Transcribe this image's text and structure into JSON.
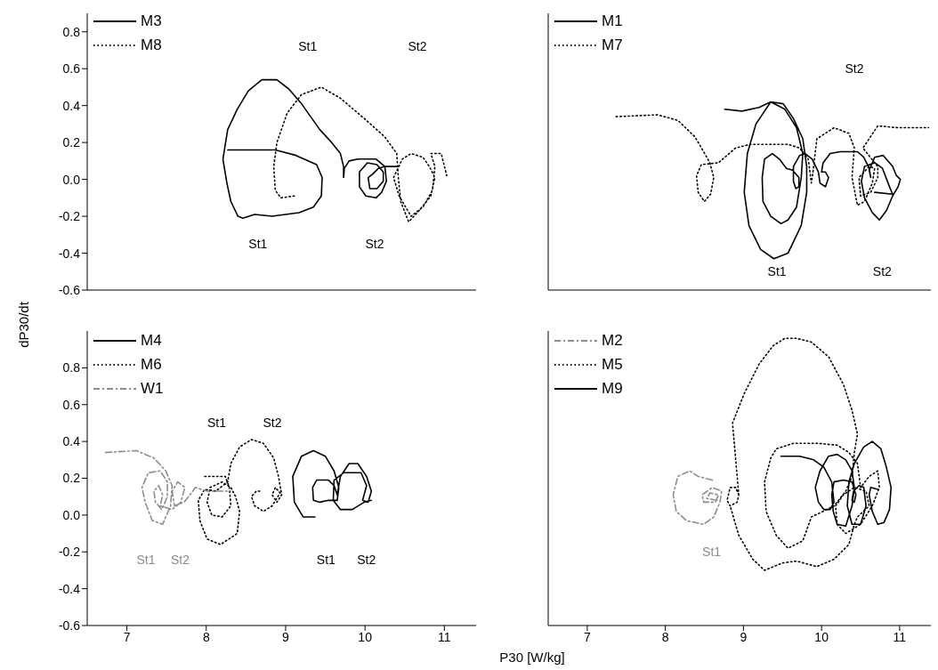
{
  "chart_data": [
    {
      "type": "line",
      "xlim": [
        6.5,
        11.4
      ],
      "ylim": [
        -0.6,
        0.9
      ],
      "xticks": [
        7,
        8,
        9,
        10,
        11
      ],
      "yticks": [
        -0.6,
        -0.4,
        -0.2,
        {
          "value": 0,
          "label": "0.0"
        },
        0.2,
        0.4,
        0.6,
        0.8
      ],
      "tick_labels": "y",
      "legend": "top left",
      "series": [
        {
          "name": "M3",
          "color": "#000000",
          "line_style": "solid",
          "x": [
            8.27,
            8.87,
            9.13,
            9.39,
            9.46,
            9.45,
            9.35,
            9.17,
            8.83,
            8.61,
            8.46,
            8.4,
            8.31,
            8.26,
            8.21,
            8.27,
            8.39,
            8.53,
            8.7,
            8.89,
            9.04,
            9.2,
            9.43,
            9.58,
            9.69,
            9.73,
            9.73,
            9.74,
            9.8,
            9.91,
            10.14,
            10.25,
            10.27,
            10.21,
            10.14,
            10.01,
            9.93,
            9.93,
            10.03,
            10.15,
            10.23,
            10.23,
            10.15,
            10.06,
            10.04,
            10.1,
            10.17,
            10.25,
            10.4
          ],
          "values": [
            0.16,
            0.16,
            0.13,
            0.08,
            0.01,
            -0.09,
            -0.15,
            -0.18,
            -0.2,
            -0.19,
            -0.21,
            -0.2,
            -0.12,
            -0.02,
            0.11,
            0.27,
            0.38,
            0.48,
            0.54,
            0.54,
            0.49,
            0.41,
            0.27,
            0.2,
            0.14,
            0.07,
            0.01,
            0.06,
            0.1,
            0.11,
            0.11,
            0.07,
            -0.01,
            -0.07,
            -0.1,
            -0.09,
            -0.04,
            0.04,
            0.09,
            0.08,
            0.04,
            -0.01,
            -0.05,
            -0.05,
            0.01,
            0.03,
            0.06,
            0.07,
            0.07
          ]
        },
        {
          "name": "M8",
          "color": "#000000",
          "line_style": "dotted",
          "x": [
            9.11,
            8.94,
            8.87,
            8.85,
            8.89,
            9.02,
            9.2,
            9.45,
            9.69,
            9.99,
            10.25,
            10.4,
            10.42,
            10.45,
            10.55,
            10.66,
            10.83,
            10.88,
            10.81,
            10.73,
            10.58,
            10.47,
            10.36,
            10.43,
            10.58,
            10.73,
            10.85,
            10.88,
            10.83,
            10.96,
            11.03
          ],
          "values": [
            -0.09,
            -0.1,
            -0.06,
            0.07,
            0.2,
            0.36,
            0.46,
            0.5,
            0.44,
            0.33,
            0.23,
            0.14,
            0.01,
            -0.12,
            -0.23,
            -0.18,
            -0.09,
            0.01,
            0.07,
            0.12,
            0.14,
            0.11,
            0.01,
            -0.09,
            -0.2,
            -0.15,
            -0.06,
            0.07,
            0.14,
            0.14,
            0.02
          ]
        }
      ],
      "annotations": [
        "St1",
        "St2",
        "St1",
        "St2"
      ]
    },
    {
      "type": "line",
      "xlim": [
        6.5,
        11.4
      ],
      "ylim": [
        -0.6,
        0.9
      ],
      "xticks": [
        7,
        8,
        9,
        10,
        11
      ],
      "yticks": [
        -0.6,
        -0.4,
        -0.2,
        0,
        0.2,
        0.4,
        0.6,
        0.8
      ],
      "tick_labels": false,
      "legend": "top left",
      "series": [
        {
          "name": "M1",
          "color": "#000000",
          "line_style": "solid",
          "x": [
            8.76,
            8.98,
            9.2,
            9.35,
            9.51,
            9.64,
            9.76,
            9.81,
            9.81,
            9.74,
            9.57,
            9.39,
            9.22,
            9.07,
            9.01,
            9.05,
            9.16,
            9.35,
            9.53,
            9.68,
            9.76,
            9.74,
            9.68,
            9.57,
            9.48,
            9.35,
            9.25,
            9.24,
            9.27,
            9.37,
            9.46,
            9.55,
            9.63,
            9.71,
            9.71,
            9.67,
            9.64,
            9.64,
            9.72,
            9.79,
            9.88,
            9.96,
            9.98,
            10.05,
            10.09,
            10.05,
            10.0,
            10.02,
            10.11,
            10.24,
            10.46,
            10.54,
            10.61,
            10.63,
            10.61,
            10.68,
            10.79,
            10.91,
            10.96,
            11.01,
            10.98,
            10.91,
            10.83,
            10.74,
            10.65,
            10.55,
            10.51,
            10.55,
            10.68,
            10.78,
            10.87,
            10.91,
            10.68
          ],
          "values": [
            0.38,
            0.37,
            0.39,
            0.42,
            0.41,
            0.33,
            0.22,
            0.07,
            -0.07,
            -0.25,
            -0.4,
            -0.43,
            -0.38,
            -0.25,
            -0.07,
            0.14,
            0.3,
            0.42,
            0.38,
            0.28,
            0.14,
            0.01,
            -0.15,
            -0.22,
            -0.24,
            -0.2,
            -0.12,
            0.01,
            0.11,
            0.14,
            0.11,
            0.06,
            0.05,
            0.01,
            -0.04,
            -0.05,
            -0.01,
            0.07,
            0.13,
            0.14,
            0.11,
            0.04,
            -0.02,
            -0.04,
            0.01,
            0.04,
            0.04,
            0.09,
            0.14,
            0.15,
            0.15,
            0.12,
            0.06,
            0.01,
            0.05,
            0.12,
            0.13,
            0.07,
            0.02,
            0,
            -0.04,
            -0.09,
            -0.17,
            -0.22,
            -0.18,
            -0.1,
            -0.01,
            0.07,
            0.09,
            0.06,
            -0.04,
            -0.08,
            -0.07
          ]
        },
        {
          "name": "M7",
          "color": "#000000",
          "line_style": "dotted",
          "x": [
            7.37,
            7.9,
            8.16,
            8.38,
            8.49,
            8.57,
            8.62,
            8.58,
            8.5,
            8.42,
            8.4,
            8.46,
            8.68,
            8.9,
            9.09,
            9.57,
            9.72,
            9.83,
            9.87,
            9.89,
            9.94,
            10.16,
            10.35,
            10.42,
            10.39,
            10.46,
            10.55,
            10.65,
            10.68,
            10.61,
            10.48,
            10.5,
            10.63,
            10.72,
            10.72,
            10.53,
            10.72,
            10.98,
            11.37
          ],
          "values": [
            0.34,
            0.35,
            0.32,
            0.23,
            0.15,
            0.09,
            0.01,
            -0.08,
            -0.12,
            -0.07,
            0.02,
            0.08,
            0.09,
            0.17,
            0.19,
            0.19,
            0.17,
            0.11,
            -0.02,
            0.04,
            0.22,
            0.28,
            0.25,
            0.17,
            0.01,
            -0.14,
            -0.12,
            -0.02,
            0.06,
            0.07,
            0.01,
            -0.09,
            -0.07,
            0.01,
            0.07,
            0.17,
            0.29,
            0.28,
            0.28
          ]
        }
      ],
      "annotations": [
        "St2",
        "St1",
        "St2"
      ]
    },
    {
      "type": "line",
      "xlabel": "P30 [W/kg]",
      "ylabel": "dP30/dt",
      "xlim": [
        6.5,
        11.4
      ],
      "ylim": [
        -0.6,
        1.0
      ],
      "xticks": [
        7,
        8,
        9,
        10,
        11
      ],
      "yticks": [
        -0.6,
        -0.4,
        -0.2,
        {
          "value": 0,
          "label": "0.0"
        },
        0.2,
        0.4,
        0.6,
        0.8
      ],
      "legend": "top left",
      "series": [
        {
          "name": "M4",
          "color": "#000000",
          "line_style": "solid",
          "x": [
            9.37,
            9.22,
            9.11,
            9.09,
            9.2,
            9.35,
            9.5,
            9.61,
            9.67,
            9.65,
            9.54,
            9.43,
            9.35,
            9.34,
            9.39,
            9.54,
            9.61,
            9.65,
            9.69,
            9.8,
            9.91,
            10.02,
            10.08,
            10.04,
            9.97,
            10.02,
            9.95,
            9.73,
            9.61,
            9.6,
            9.69,
            9.84,
            9.99,
            10.08
          ],
          "values": [
            -0.01,
            -0.01,
            0.07,
            0.21,
            0.32,
            0.35,
            0.32,
            0.24,
            0.15,
            0.08,
            0.08,
            0.07,
            0.08,
            0.15,
            0.19,
            0.19,
            0.16,
            0.11,
            0.21,
            0.28,
            0.28,
            0.21,
            0.13,
            0.07,
            0.08,
            0.16,
            0.23,
            0.23,
            0.19,
            0.08,
            0.03,
            0.03,
            0.07,
            0.08
          ]
        },
        {
          "name": "M6",
          "color": "#000000",
          "line_style": "dotted",
          "x": [
            7.98,
            8.24,
            8.29,
            8.31,
            8.2,
            8.07,
            8.01,
            8.05,
            8.2,
            8.31,
            8.37,
            8.42,
            8.39,
            8.18,
            8.01,
            7.92,
            7.9,
            7.98,
            8.12,
            8.27,
            8.31,
            8.42,
            8.57,
            8.72,
            8.85,
            8.91,
            8.95,
            8.89,
            8.83,
            8.87,
            8.93,
            8.83,
            8.72,
            8.61,
            8.57,
            8.63,
            8.68
          ],
          "values": [
            0.21,
            0.21,
            0.15,
            0.05,
            -0.01,
            0,
            0.07,
            0.15,
            0.18,
            0.15,
            0.1,
            0.02,
            -0.1,
            -0.16,
            -0.13,
            -0.03,
            0.08,
            0.14,
            0.13,
            0.18,
            0.28,
            0.37,
            0.41,
            0.39,
            0.31,
            0.21,
            0.11,
            0.07,
            0.11,
            0.15,
            0.12,
            0.05,
            0.02,
            0.05,
            0.1,
            0.13,
            0.13
          ]
        },
        {
          "name": "W1",
          "color": "#8c8c8c",
          "line_style": "dashed",
          "x": [
            6.73,
            7.12,
            7.34,
            7.49,
            7.57,
            7.55,
            7.45,
            7.32,
            7.23,
            7.19,
            7.27,
            7.42,
            7.51,
            7.51,
            7.44,
            7.36,
            7.34,
            7.4,
            7.45,
            7.42,
            7.57,
            7.68,
            7.73,
            7.64,
            7.57,
            7.6,
            7.72,
            7.83,
            7.86,
            8.01,
            8.31
          ],
          "values": [
            0.34,
            0.35,
            0.31,
            0.24,
            0.16,
            0.05,
            -0.05,
            -0.03,
            0.07,
            0.15,
            0.23,
            0.24,
            0.18,
            0.1,
            0.03,
            0.07,
            0.13,
            0.16,
            0.11,
            0.05,
            0.03,
            0.07,
            0.15,
            0.18,
            0.13,
            0.05,
            0.07,
            0.13,
            0.15,
            0.13,
            0.13
          ]
        }
      ],
      "annotations": [
        "St1",
        "St2",
        "St1",
        "St2",
        "St1",
        "St2"
      ]
    },
    {
      "type": "line",
      "xlim": [
        6.5,
        11.4
      ],
      "ylim": [
        -0.6,
        1.0
      ],
      "xticks": [
        7,
        8,
        9,
        10,
        11
      ],
      "yticks": [
        -0.6,
        -0.4,
        -0.2,
        0,
        0.2,
        0.4,
        0.6,
        0.8
      ],
      "tick_labels": "x",
      "legend": "top left",
      "series": [
        {
          "name": "M2",
          "color": "#8c8c8c",
          "line_style": "dashed",
          "x": [
            8.6,
            8.42,
            8.31,
            8.16,
            8.1,
            8.14,
            8.27,
            8.49,
            8.62,
            8.7,
            8.72,
            8.6,
            8.47,
            8.49,
            8.64,
            8.68,
            8.57,
            8.53,
            8.66
          ],
          "values": [
            0.19,
            0.21,
            0.24,
            0.21,
            0.11,
            0.02,
            -0.03,
            -0.05,
            -0.01,
            0.07,
            0.13,
            0.15,
            0.11,
            0.07,
            0.07,
            0.11,
            0.12,
            0.09,
            0.08
          ]
        },
        {
          "name": "M5",
          "color": "#000000",
          "line_style": "dotted",
          "x": [
            8.94,
            8.9,
            8.83,
            8.79,
            8.83,
            8.92,
            8.94,
            8.86,
            9.01,
            9.2,
            9.38,
            9.53,
            9.68,
            9.87,
            10.09,
            10.28,
            10.39,
            10.46,
            10.42,
            10.39,
            10.31,
            10.16,
            10.02,
            9.87,
            9.76,
            9.57,
            9.42,
            9.29,
            9.27,
            9.35,
            9.42,
            9.64,
            9.94,
            10.2,
            10.35,
            10.46,
            10.5,
            10.61,
            10.72,
            10.74,
            10.65,
            10.5,
            10.31,
            10.2,
            10.18,
            10.28,
            10.42,
            10.57,
            10.61,
            10.46,
            10.42,
            10.35,
            10.16,
            9.94,
            9.68,
            9.5,
            9.27,
            9.12,
            8.94,
            8.83
          ],
          "values": [
            0.11,
            0.15,
            0.15,
            0.08,
            0.05,
            0.07,
            0.11,
            0.5,
            0.66,
            0.82,
            0.92,
            0.96,
            0.96,
            0.94,
            0.86,
            0.71,
            0.57,
            0.44,
            0.34,
            0.21,
            0.13,
            0.05,
            0.02,
            -0.01,
            -0.14,
            -0.18,
            -0.11,
            0.02,
            0.18,
            0.31,
            0.36,
            0.39,
            0.39,
            0.38,
            0.34,
            0.28,
            0.15,
            0.21,
            0.24,
            0.15,
            0.05,
            -0.05,
            -0.1,
            -0.05,
            0.05,
            0.11,
            0.15,
            0.13,
            0.05,
            -0.01,
            -0.05,
            -0.16,
            -0.24,
            -0.28,
            -0.25,
            -0.26,
            -0.3,
            -0.24,
            -0.11,
            0.05
          ]
        },
        {
          "name": "M9",
          "color": "#000000",
          "line_style": "solid",
          "x": [
            9.48,
            9.72,
            9.9,
            10.03,
            10.13,
            10.16,
            10.11,
            10.03,
            9.96,
            9.92,
            9.98,
            10.09,
            10.2,
            10.31,
            10.39,
            10.42,
            10.39,
            10.31,
            10.2,
            10.15,
            10.13,
            10.16,
            10.28,
            10.39,
            10.44,
            10.42,
            10.39,
            10.41,
            10.48,
            10.54,
            10.57,
            10.5,
            10.39,
            10.33,
            10.35,
            10.42,
            10.54,
            10.65,
            10.76,
            10.83,
            10.89,
            10.87,
            10.8,
            10.72,
            10.65,
            10.61,
            10.63,
            10.72
          ],
          "values": [
            0.32,
            0.32,
            0.3,
            0.26,
            0.18,
            0.07,
            0.03,
            0.03,
            0.07,
            0.15,
            0.24,
            0.32,
            0.33,
            0.3,
            0.24,
            0.15,
            0.05,
            -0.06,
            -0.05,
            0.02,
            0.11,
            0.18,
            0.19,
            0.18,
            0.11,
            0.07,
            0.08,
            0.13,
            0.16,
            0.15,
            0.05,
            -0.05,
            -0.05,
            0.05,
            0.18,
            0.28,
            0.37,
            0.4,
            0.36,
            0.26,
            0.15,
            0.03,
            -0.04,
            -0.05,
            0.02,
            0.11,
            0.15,
            0.14
          ]
        }
      ],
      "annotations": [
        "St1"
      ]
    }
  ]
}
